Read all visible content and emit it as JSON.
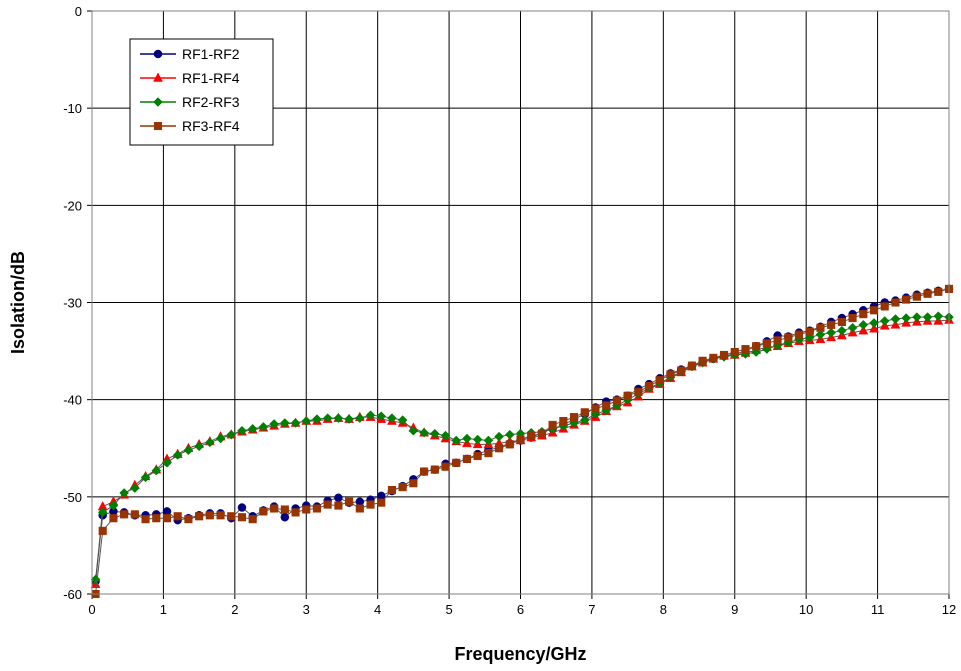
{
  "chart_data": {
    "type": "line",
    "xlabel": "Frequency/GHz",
    "ylabel": "Isolation/dB",
    "xlim": [
      0,
      12
    ],
    "ylim": [
      -60,
      0
    ],
    "xticks": [
      0,
      1,
      2,
      3,
      4,
      5,
      6,
      7,
      8,
      9,
      10,
      11,
      12
    ],
    "yticks": [
      0,
      -10,
      -20,
      -30,
      -40,
      -50,
      -60
    ],
    "grid": true,
    "legend_position": "top-left",
    "series": [
      {
        "name": "RF1-RF2",
        "color": "#000080",
        "marker": "circle",
        "x": [
          0.05,
          0.15,
          0.3,
          0.45,
          0.6,
          0.75,
          0.9,
          1.05,
          1.2,
          1.35,
          1.5,
          1.65,
          1.8,
          1.95,
          2.1,
          2.25,
          2.4,
          2.55,
          2.7,
          2.85,
          3.0,
          3.15,
          3.3,
          3.45,
          3.6,
          3.75,
          3.9,
          4.05,
          4.2,
          4.35,
          4.5,
          4.65,
          4.8,
          4.95,
          5.1,
          5.25,
          5.4,
          5.55,
          5.7,
          5.85,
          6.0,
          6.15,
          6.3,
          6.45,
          6.6,
          6.75,
          6.9,
          7.05,
          7.2,
          7.35,
          7.5,
          7.65,
          7.8,
          7.95,
          8.1,
          8.25,
          8.4,
          8.55,
          8.7,
          8.85,
          9.0,
          9.15,
          9.3,
          9.45,
          9.6,
          9.75,
          9.9,
          10.05,
          10.2,
          10.35,
          10.5,
          10.65,
          10.8,
          10.95,
          11.1,
          11.25,
          11.4,
          11.55,
          11.7,
          11.85,
          12.0
        ],
        "y": [
          -58.7,
          -51.9,
          -51.5,
          -51.6,
          -51.9,
          -51.9,
          -51.8,
          -51.5,
          -52.4,
          -52.2,
          -51.9,
          -51.7,
          -51.7,
          -52.2,
          -51.1,
          -52.0,
          -51.4,
          -51.0,
          -52.1,
          -51.2,
          -50.9,
          -51.0,
          -50.4,
          -50.1,
          -50.6,
          -50.5,
          -50.3,
          -49.9,
          -49.4,
          -48.9,
          -48.2,
          -47.4,
          -47.2,
          -46.6,
          -46.5,
          -46.1,
          -45.6,
          -45.2,
          -44.9,
          -44.5,
          -44.2,
          -43.9,
          -43.4,
          -43.0,
          -42.6,
          -42.0,
          -41.5,
          -40.8,
          -40.2,
          -40.0,
          -39.6,
          -38.9,
          -38.4,
          -37.8,
          -37.3,
          -36.9,
          -36.5,
          -36.1,
          -35.8,
          -35.5,
          -35.3,
          -35.0,
          -34.5,
          -34.0,
          -33.4,
          -33.5,
          -33.1,
          -32.9,
          -32.5,
          -32.0,
          -31.6,
          -31.2,
          -30.8,
          -30.4,
          -30.0,
          -29.8,
          -29.5,
          -29.2,
          -29.0,
          -28.8,
          -28.6
        ]
      },
      {
        "name": "RF1-RF4",
        "color": "#ff0000",
        "marker": "triangle",
        "x": [
          0.05,
          0.15,
          0.3,
          0.45,
          0.6,
          0.75,
          0.9,
          1.05,
          1.2,
          1.35,
          1.5,
          1.65,
          1.8,
          1.95,
          2.1,
          2.25,
          2.4,
          2.55,
          2.7,
          2.85,
          3.0,
          3.15,
          3.3,
          3.45,
          3.6,
          3.75,
          3.9,
          4.05,
          4.2,
          4.35,
          4.5,
          4.65,
          4.8,
          4.95,
          5.1,
          5.25,
          5.4,
          5.55,
          5.7,
          5.85,
          6.0,
          6.15,
          6.3,
          6.45,
          6.6,
          6.75,
          6.9,
          7.05,
          7.2,
          7.35,
          7.5,
          7.65,
          7.8,
          7.95,
          8.1,
          8.25,
          8.4,
          8.55,
          8.7,
          8.85,
          9.0,
          9.15,
          9.3,
          9.45,
          9.6,
          9.75,
          9.9,
          10.05,
          10.2,
          10.35,
          10.5,
          10.65,
          10.8,
          10.95,
          11.1,
          11.25,
          11.4,
          11.55,
          11.7,
          11.85,
          12.0
        ],
        "y": [
          -59.0,
          -51.0,
          -50.5,
          -49.8,
          -48.8,
          -47.9,
          -47.2,
          -46.1,
          -45.6,
          -45.0,
          -44.6,
          -44.3,
          -43.8,
          -43.6,
          -43.3,
          -43.1,
          -42.9,
          -42.7,
          -42.5,
          -42.4,
          -42.2,
          -42.2,
          -42.0,
          -41.9,
          -42.0,
          -41.8,
          -41.8,
          -42.0,
          -42.2,
          -42.4,
          -42.9,
          -43.4,
          -43.7,
          -44.0,
          -44.3,
          -44.5,
          -44.6,
          -44.6,
          -44.5,
          -44.3,
          -44.2,
          -43.9,
          -43.7,
          -43.4,
          -43.0,
          -42.6,
          -42.2,
          -41.8,
          -41.2,
          -40.7,
          -40.3,
          -39.7,
          -38.9,
          -38.4,
          -37.8,
          -37.2,
          -36.6,
          -36.2,
          -35.8,
          -35.5,
          -35.4,
          -35.2,
          -34.9,
          -34.6,
          -34.5,
          -34.2,
          -34.0,
          -33.9,
          -33.8,
          -33.6,
          -33.4,
          -33.1,
          -32.9,
          -32.7,
          -32.4,
          -32.3,
          -32.1,
          -32.0,
          -31.9,
          -31.9,
          -31.8
        ]
      },
      {
        "name": "RF2-RF3",
        "color": "#008000",
        "marker": "diamond",
        "x": [
          0.05,
          0.15,
          0.3,
          0.45,
          0.6,
          0.75,
          0.9,
          1.05,
          1.2,
          1.35,
          1.5,
          1.65,
          1.8,
          1.95,
          2.1,
          2.25,
          2.4,
          2.55,
          2.7,
          2.85,
          3.0,
          3.15,
          3.3,
          3.45,
          3.6,
          3.75,
          3.9,
          4.05,
          4.2,
          4.35,
          4.5,
          4.65,
          4.8,
          4.95,
          5.1,
          5.25,
          5.4,
          5.55,
          5.7,
          5.85,
          6.0,
          6.15,
          6.3,
          6.45,
          6.6,
          6.75,
          6.9,
          7.05,
          7.2,
          7.35,
          7.5,
          7.65,
          7.8,
          7.95,
          8.1,
          8.25,
          8.4,
          8.55,
          8.7,
          8.85,
          9.0,
          9.15,
          9.3,
          9.45,
          9.6,
          9.75,
          9.9,
          10.05,
          10.2,
          10.35,
          10.5,
          10.65,
          10.8,
          10.95,
          11.1,
          11.25,
          11.4,
          11.55,
          11.7,
          11.85,
          12.0
        ],
        "y": [
          -58.5,
          -51.6,
          -50.9,
          -49.6,
          -49.1,
          -48.0,
          -47.3,
          -46.5,
          -45.7,
          -45.2,
          -44.8,
          -44.4,
          -44.0,
          -43.6,
          -43.2,
          -43.0,
          -42.8,
          -42.5,
          -42.4,
          -42.4,
          -42.2,
          -42.0,
          -41.9,
          -41.9,
          -42.0,
          -41.9,
          -41.6,
          -41.7,
          -41.9,
          -42.1,
          -43.2,
          -43.4,
          -43.5,
          -43.7,
          -44.2,
          -44.0,
          -44.1,
          -44.2,
          -43.8,
          -43.6,
          -43.5,
          -43.4,
          -43.3,
          -43.0,
          -42.7,
          -42.4,
          -42.1,
          -41.5,
          -41.1,
          -40.6,
          -40.0,
          -39.4,
          -38.8,
          -38.3,
          -37.7,
          -37.1,
          -36.6,
          -36.2,
          -35.8,
          -35.6,
          -35.4,
          -35.3,
          -35.1,
          -34.8,
          -34.4,
          -34.1,
          -33.8,
          -33.6,
          -33.3,
          -33.1,
          -32.9,
          -32.6,
          -32.3,
          -32.1,
          -31.9,
          -31.7,
          -31.6,
          -31.5,
          -31.5,
          -31.4,
          -31.5
        ]
      },
      {
        "name": "RF3-RF4",
        "color": "#993300",
        "marker": "square",
        "x": [
          0.05,
          0.15,
          0.3,
          0.45,
          0.6,
          0.75,
          0.9,
          1.05,
          1.2,
          1.35,
          1.5,
          1.65,
          1.8,
          1.95,
          2.1,
          2.25,
          2.4,
          2.55,
          2.7,
          2.85,
          3.0,
          3.15,
          3.3,
          3.45,
          3.6,
          3.75,
          3.9,
          4.05,
          4.2,
          4.35,
          4.5,
          4.65,
          4.8,
          4.95,
          5.1,
          5.25,
          5.4,
          5.55,
          5.7,
          5.85,
          6.0,
          6.15,
          6.3,
          6.45,
          6.6,
          6.75,
          6.9,
          7.05,
          7.2,
          7.35,
          7.5,
          7.65,
          7.8,
          7.95,
          8.1,
          8.25,
          8.4,
          8.55,
          8.7,
          8.85,
          9.0,
          9.15,
          9.3,
          9.45,
          9.6,
          9.75,
          9.9,
          10.05,
          10.2,
          10.35,
          10.5,
          10.65,
          10.8,
          10.95,
          11.1,
          11.25,
          11.4,
          11.55,
          11.7,
          11.85,
          12.0
        ],
        "y": [
          -60.0,
          -53.5,
          -52.2,
          -51.8,
          -51.8,
          -52.3,
          -52.2,
          -52.2,
          -52.0,
          -52.3,
          -52.0,
          -51.9,
          -51.9,
          -52.0,
          -52.1,
          -52.3,
          -51.5,
          -51.2,
          -51.3,
          -51.6,
          -51.3,
          -51.2,
          -50.8,
          -50.9,
          -50.5,
          -51.2,
          -50.8,
          -50.6,
          -49.3,
          -49.0,
          -48.6,
          -47.4,
          -47.2,
          -46.9,
          -46.5,
          -46.1,
          -45.8,
          -45.5,
          -45.0,
          -44.6,
          -44.1,
          -43.7,
          -43.5,
          -42.6,
          -42.2,
          -41.8,
          -41.3,
          -40.9,
          -40.6,
          -40.1,
          -39.6,
          -39.2,
          -38.6,
          -38.0,
          -37.4,
          -37.0,
          -36.5,
          -36.0,
          -35.7,
          -35.4,
          -35.1,
          -34.8,
          -34.5,
          -34.2,
          -33.9,
          -33.6,
          -33.3,
          -33.0,
          -32.6,
          -32.3,
          -32.0,
          -31.6,
          -31.2,
          -30.8,
          -30.4,
          -30.0,
          -29.7,
          -29.4,
          -29.1,
          -28.9,
          -28.6
        ]
      }
    ]
  }
}
